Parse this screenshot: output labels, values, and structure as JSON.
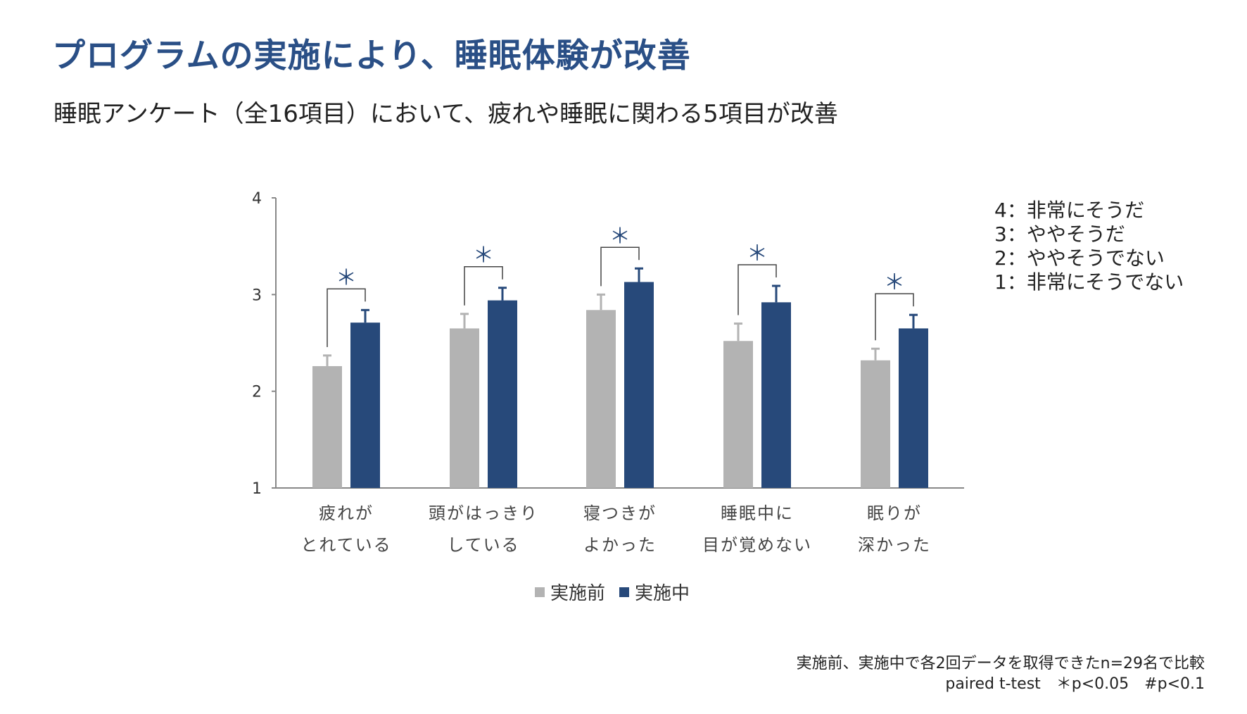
{
  "title": "プログラムの実施により、睡眠体験が改善",
  "subtitle": "睡眠アンケート（全16項目）において、疲れや睡眠に関わる5項目が改善",
  "scale_legend": [
    "4：非常にそうだ",
    "3：ややそうだ",
    "2：ややそうでない",
    "1：非常にそうでない"
  ],
  "footnote": {
    "line1": "実施前、実施中で各2回データを取得できたn=29名で比較",
    "line2": "paired t-test　＊p<0.05　#p<0.1"
  },
  "colors": {
    "before": "#b3b3b3",
    "during": "#27497a",
    "axis": "#888888",
    "significance": "#27497a"
  },
  "chart_data": {
    "type": "bar",
    "title": "",
    "xlabel": "",
    "ylabel": "",
    "ylim": [
      1,
      4
    ],
    "yticks": [
      "1",
      "2",
      "3",
      "4"
    ],
    "categories": [
      [
        "疲れが",
        "とれている"
      ],
      [
        "頭がはっきり",
        "している"
      ],
      [
        "寝つきが",
        "よかった"
      ],
      [
        "睡眠中に",
        "目が覚めない"
      ],
      [
        "眠りが",
        "深かった"
      ]
    ],
    "series": [
      {
        "name": "実施前",
        "values": [
          2.26,
          2.65,
          2.84,
          2.52,
          2.32
        ],
        "errors": [
          0.11,
          0.15,
          0.16,
          0.18,
          0.12
        ]
      },
      {
        "name": "実施中",
        "values": [
          2.71,
          2.94,
          3.13,
          2.92,
          2.65
        ],
        "errors": [
          0.13,
          0.13,
          0.14,
          0.17,
          0.14
        ]
      }
    ],
    "significance": [
      "＊",
      "＊",
      "＊",
      "＊",
      "＊"
    ],
    "legend_position": "bottom"
  }
}
